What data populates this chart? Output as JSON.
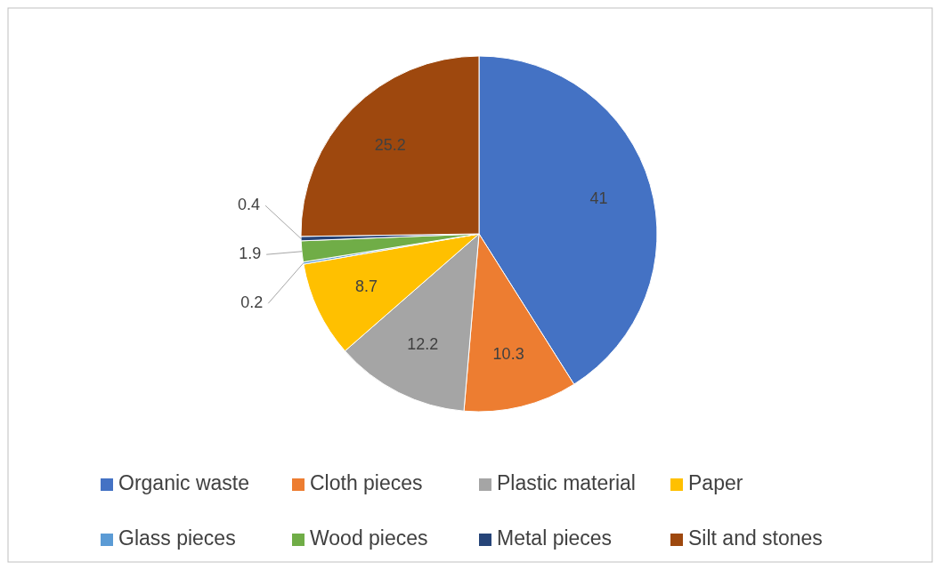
{
  "chart_data": {
    "type": "pie",
    "categories": [
      "Organic waste",
      "Cloth pieces",
      "Plastic material",
      "Paper",
      "Glass pieces",
      "Wood pieces",
      "Metal pieces",
      "Silt and stones"
    ],
    "values": [
      41,
      10.3,
      12.2,
      8.7,
      0.2,
      1.9,
      0.4,
      25.2
    ],
    "colors": [
      "#4472c4",
      "#ed7d31",
      "#a5a5a5",
      "#ffc000",
      "#5b9bd5",
      "#70ad47",
      "#264478",
      "#9e480e"
    ],
    "data_labels": true,
    "legend": "bottom"
  }
}
